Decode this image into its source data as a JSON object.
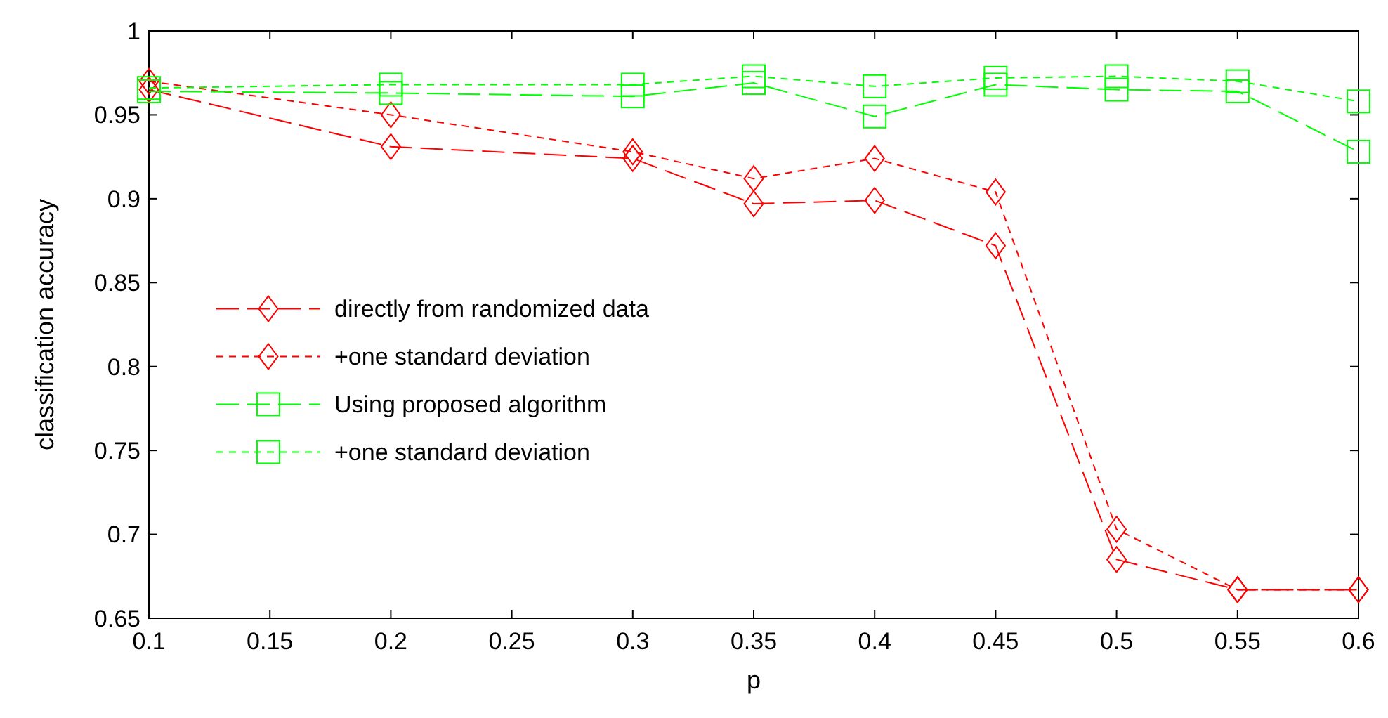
{
  "chart_data": {
    "type": "line",
    "xlabel": "p",
    "ylabel": "classification accuracy",
    "x": [
      0.1,
      0.2,
      0.3,
      0.35,
      0.4,
      0.45,
      0.5,
      0.55,
      0.6
    ],
    "xlim": [
      0.1,
      0.6
    ],
    "xticks": [
      0.1,
      0.15,
      0.2,
      0.25,
      0.3,
      0.35,
      0.4,
      0.45,
      0.5,
      0.55,
      0.6
    ],
    "ylim": [
      0.65,
      1
    ],
    "yticks": [
      0.65,
      0.7,
      0.75,
      0.8,
      0.85,
      0.9,
      0.95,
      1
    ],
    "grid": false,
    "legend": "left",
    "series": [
      {
        "name": "directly from randomized data",
        "color": "#ff0000",
        "marker": "diamond",
        "line_style": "dashed",
        "values": [
          0.965,
          0.931,
          0.924,
          0.897,
          0.899,
          0.872,
          0.685,
          0.667,
          0.667
        ]
      },
      {
        "name": "+one standard deviation",
        "color": "#ff0000",
        "marker": "diamond",
        "line_style": "dotted",
        "values": [
          0.97,
          0.95,
          0.928,
          0.912,
          0.924,
          0.904,
          0.703,
          0.667,
          0.667
        ]
      },
      {
        "name": "Using proposed algorithm",
        "color": "#00ff00",
        "marker": "square",
        "line_style": "dashed",
        "values": [
          0.964,
          0.963,
          0.961,
          0.969,
          0.949,
          0.968,
          0.965,
          0.964,
          0.928
        ]
      },
      {
        "name": "+one standard deviation",
        "color": "#00ff00",
        "marker": "square",
        "line_style": "dotted",
        "values": [
          0.966,
          0.968,
          0.968,
          0.973,
          0.967,
          0.972,
          0.973,
          0.97,
          0.958
        ]
      }
    ]
  }
}
